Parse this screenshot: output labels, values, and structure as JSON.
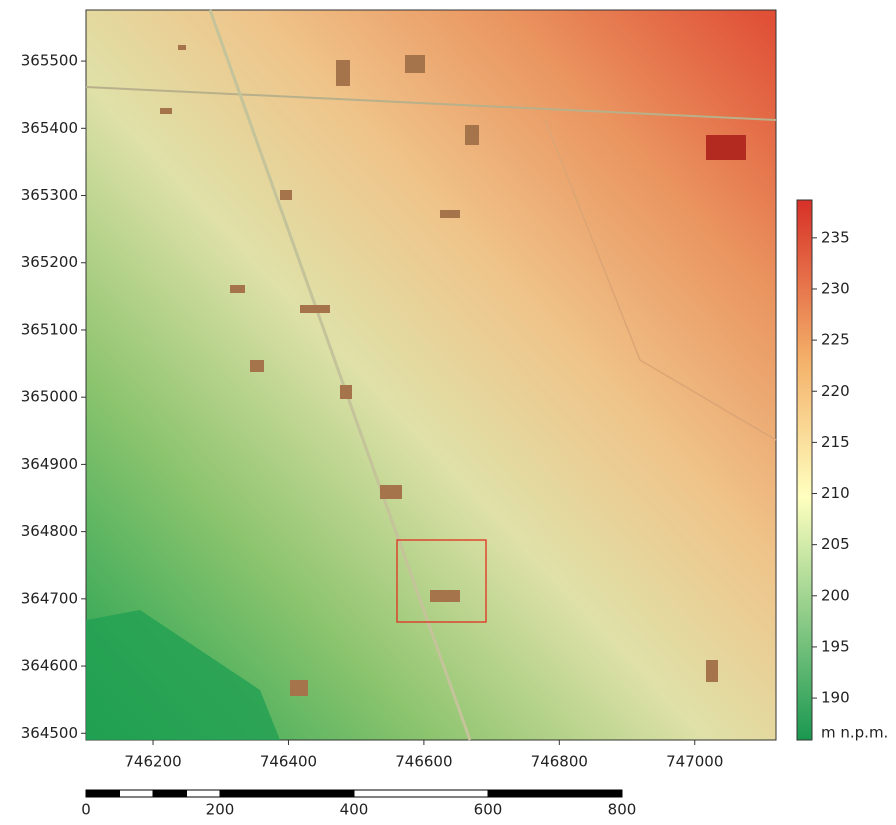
{
  "map": {
    "xlim": [
      746101,
      747120
    ],
    "ylim": [
      364490,
      365576
    ],
    "xticks": [
      746200,
      746400,
      746600,
      746800,
      747000
    ],
    "yticks": [
      364500,
      364600,
      364700,
      364800,
      364900,
      365000,
      365100,
      365200,
      365300,
      365400,
      365500
    ],
    "colorbar": {
      "lim": [
        185.9,
        238.7
      ],
      "ticks": [
        190,
        195,
        200,
        205,
        210,
        215,
        220,
        225,
        230,
        235
      ],
      "label": "m n.p.m."
    },
    "scalebar": {
      "lim": [
        0,
        800
      ],
      "ticks": [
        0,
        200,
        400,
        600,
        800
      ]
    }
  }
}
